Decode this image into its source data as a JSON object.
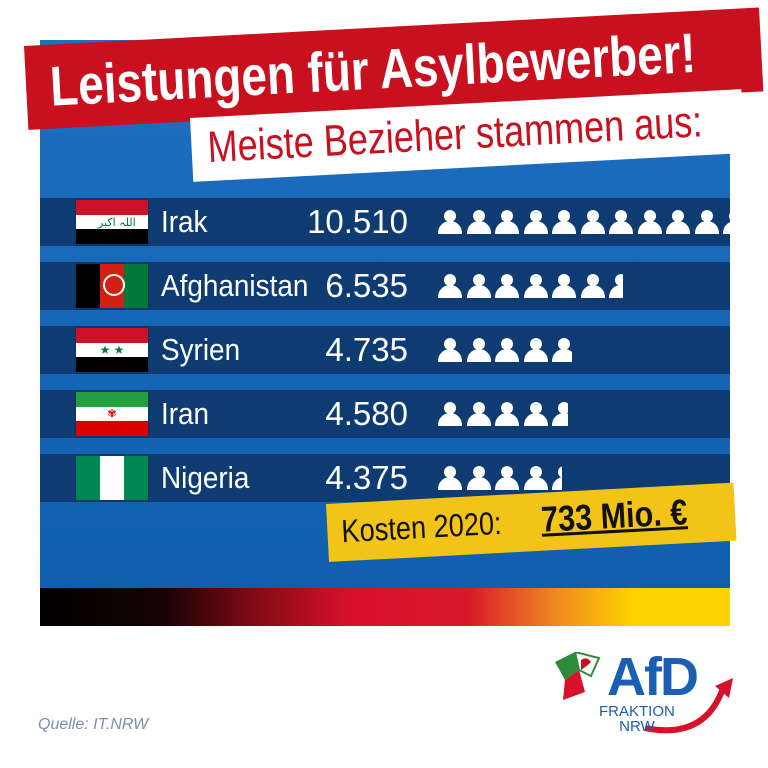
{
  "title": "Leistungen für Asylbewerber!",
  "subtitle": "Meiste Bezieher stammen aus:",
  "chart_data": {
    "type": "bar",
    "categories": [
      "Irak",
      "Afghanistan",
      "Syrien",
      "Iran",
      "Nigeria"
    ],
    "values": [
      10510,
      6535,
      4735,
      4580,
      4375
    ],
    "value_labels": [
      "10.510",
      "6.535",
      "4.735",
      "4.580",
      "4.375"
    ],
    "unit_per_icon": 1000,
    "icon": "person-icon",
    "flags": [
      "flag-iraq-icon",
      "flag-afghanistan-icon",
      "flag-syria-icon",
      "flag-iran-icon",
      "flag-nigeria-icon"
    ]
  },
  "cost": {
    "label": "Kosten 2020:",
    "amount": "733 Mio. €"
  },
  "source": "Quelle: IT.NRW",
  "logo": {
    "name": "AfD",
    "line1": "FRAKTION",
    "line2": "NRW"
  },
  "colors": {
    "background": "#1565c0",
    "row": "#0e3c72",
    "title_red": "#c8101e",
    "cost_yellow": "#f2c418",
    "logo_blue": "#1a5fb4"
  }
}
